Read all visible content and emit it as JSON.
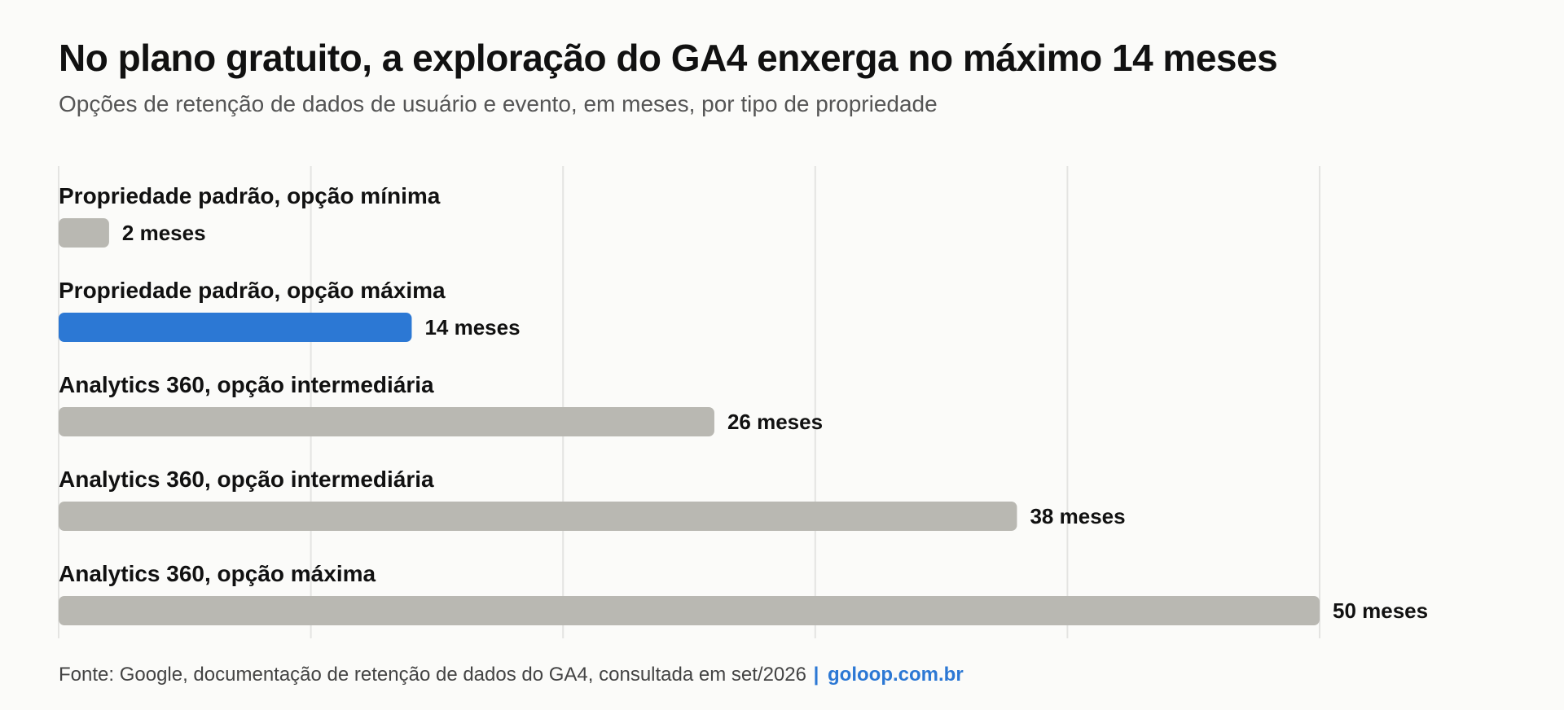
{
  "header": {
    "title": "No plano gratuito, a exploração do GA4 enxerga no máximo 14 meses",
    "subtitle": "Opções de retenção de dados de usuário e evento, em meses, por tipo de propriedade"
  },
  "footer": {
    "source": "Fonte: Google, documentação de retenção de dados do GA4, consultada em set/2026",
    "separator": "|",
    "site": "goloop.com.br"
  },
  "colors": {
    "highlight": "#2c78d4",
    "default_bar": "#b9b8b2",
    "gridline": "#e4e4e2",
    "text": "#111111",
    "background": "#fbfbf9"
  },
  "chart_data": {
    "type": "bar",
    "orientation": "horizontal",
    "categories": [
      "Propriedade padrão, opção mínima",
      "Propriedade padrão, opção máxima",
      "Analytics 360, opção intermediária",
      "Analytics 360, opção intermediária",
      "Analytics 360, opção máxima"
    ],
    "values": [
      2,
      14,
      26,
      38,
      50
    ],
    "value_labels": [
      "2 meses",
      "14 meses",
      "26 meses",
      "38 meses",
      "50 meses"
    ],
    "highlight_index": 1,
    "xlim": [
      0,
      50
    ],
    "grid_values": [
      0,
      10,
      20,
      30,
      40,
      50
    ],
    "grid": true,
    "legend": "none",
    "xlabel": "",
    "ylabel": ""
  }
}
